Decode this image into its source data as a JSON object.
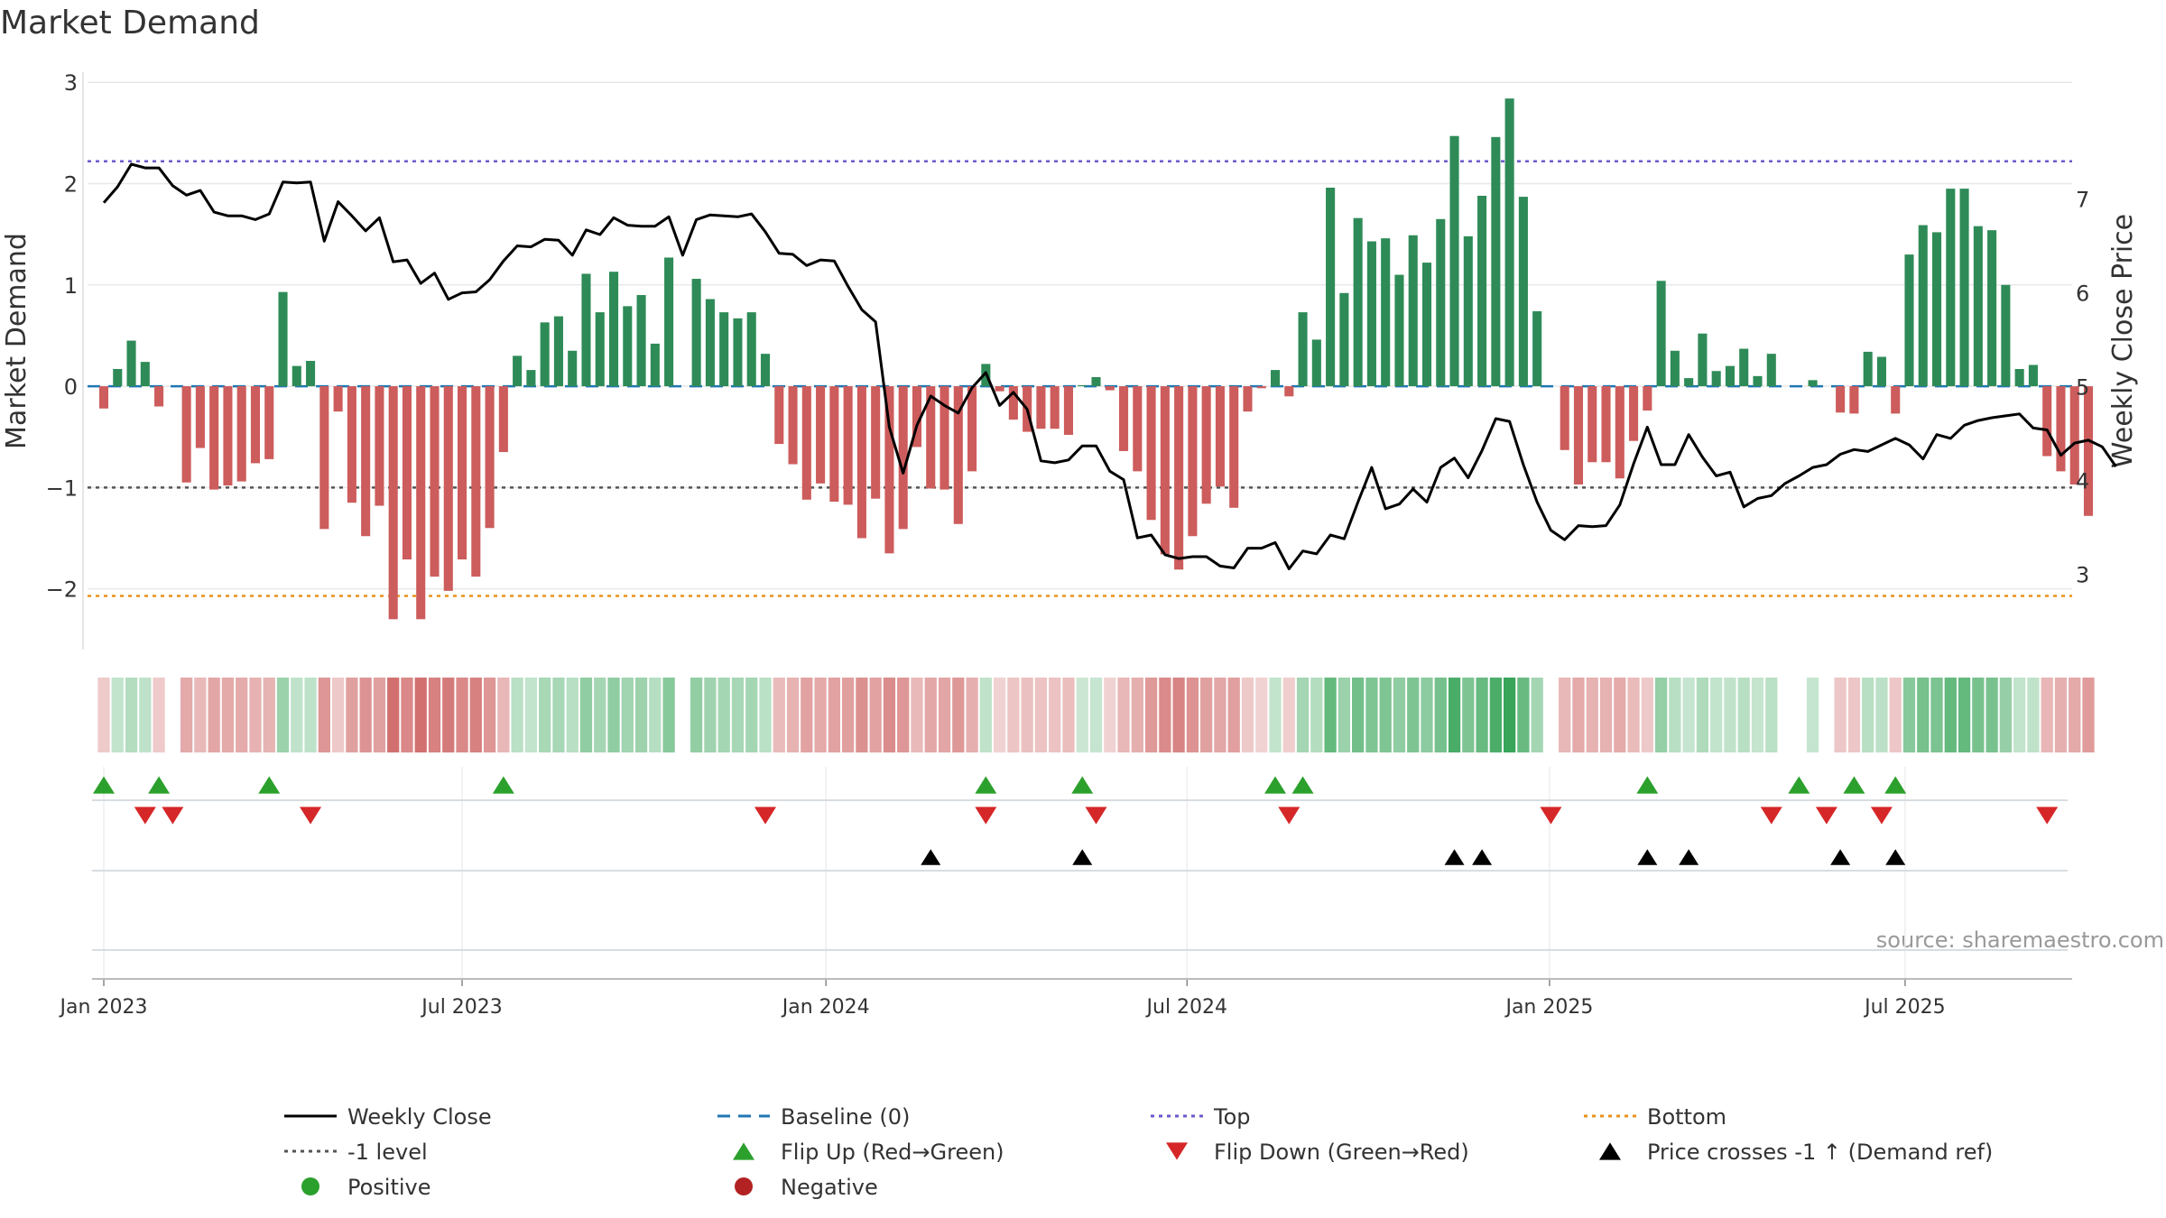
{
  "chart_data": {
    "type": "bar+line",
    "title": "Market Demand",
    "ylabel_left": "Market Demand",
    "ylabel_right": "Weekly Close Price",
    "source": "source: sharemaestro.com",
    "ylim_left": [
      -2.6,
      3.1
    ],
    "yticks_left": [
      {
        "v": 3,
        "label": "3"
      },
      {
        "v": 2,
        "label": "2"
      },
      {
        "v": 1,
        "label": "1"
      },
      {
        "v": 0,
        "label": "0"
      },
      {
        "v": -1,
        "label": "−1"
      },
      {
        "v": -2,
        "label": "−2"
      }
    ],
    "ylim_right": [
      2.2,
      8.35
    ],
    "yticks_right": [
      {
        "v": 7,
        "label": "7"
      },
      {
        "v": 6,
        "label": "6"
      },
      {
        "v": 5,
        "label": "5"
      },
      {
        "v": 4,
        "label": "4"
      },
      {
        "v": 3,
        "label": "3"
      }
    ],
    "reference_lines": {
      "top": 2.22,
      "bottom": -2.07,
      "minus_one": -1,
      "baseline": 0
    },
    "x_start": "2022-12-26",
    "x_ticks": [
      {
        "week": 0,
        "label": "Jan 2023"
      },
      {
        "week": 26,
        "label": "Jul 2023"
      },
      {
        "week": 52.4,
        "label": "Jan 2024"
      },
      {
        "week": 78.6,
        "label": "Jul 2024"
      },
      {
        "week": 104.9,
        "label": "Jan 2025"
      },
      {
        "week": 130.7,
        "label": "Jul 2025"
      }
    ],
    "demand": [
      -0.22,
      0.17,
      0.45,
      0.24,
      -0.2,
      0,
      -0.95,
      -0.61,
      -1.02,
      -0.98,
      -0.94,
      -0.76,
      -0.72,
      0.93,
      0.2,
      0.25,
      -1.41,
      -0.25,
      -1.15,
      -1.48,
      -1.18,
      -2.3,
      -1.71,
      -2.3,
      -1.88,
      -2.02,
      -1.71,
      -1.88,
      -1.4,
      -0.65,
      0.3,
      0.16,
      0.63,
      0.69,
      0.35,
      1.11,
      0.73,
      1.13,
      0.79,
      0.9,
      0.42,
      1.27,
      0,
      1.06,
      0.86,
      0.73,
      0.67,
      0.73,
      0.32,
      -0.57,
      -0.77,
      -1.12,
      -0.96,
      -1.14,
      -1.17,
      -1.5,
      -1.11,
      -1.65,
      -1.41,
      -0.6,
      -1.01,
      -1.02,
      -1.36,
      -0.84,
      0.22,
      -0.05,
      -0.33,
      -0.45,
      -0.42,
      -0.42,
      -0.48,
      0.01,
      0.09,
      -0.04,
      -0.64,
      -0.84,
      -1.32,
      -1.66,
      -1.81,
      -1.48,
      -1.16,
      -0.99,
      -1.2,
      -0.25,
      -0.02,
      0.16,
      -0.1,
      0.73,
      0.46,
      1.96,
      0.92,
      1.66,
      1.43,
      1.46,
      1.1,
      1.49,
      1.22,
      1.65,
      2.47,
      1.48,
      1.88,
      2.46,
      2.84,
      1.87,
      0.74,
      0,
      -0.63,
      -0.97,
      -0.75,
      -0.75,
      -0.91,
      -0.54,
      -0.24,
      1.04,
      0.35,
      0.08,
      0.52,
      0.15,
      0.2,
      0.37,
      0.1,
      0.32,
      0,
      0,
      0.06,
      0,
      -0.26,
      -0.27,
      0.34,
      0.29,
      -0.27,
      1.3,
      1.59,
      1.52,
      1.95,
      1.95,
      1.58,
      1.54,
      1.0,
      0.17,
      0.21,
      -0.69,
      -0.84,
      -0.97,
      -1.28
    ],
    "close": [
      6.96,
      7.13,
      7.37,
      7.33,
      7.33,
      7.14,
      7.04,
      7.09,
      6.86,
      6.82,
      6.82,
      6.78,
      6.84,
      7.18,
      7.17,
      7.18,
      6.55,
      6.97,
      6.82,
      6.66,
      6.8,
      6.33,
      6.35,
      6.1,
      6.21,
      5.93,
      6.0,
      6.01,
      6.14,
      6.34,
      6.5,
      6.49,
      6.57,
      6.56,
      6.4,
      6.67,
      6.62,
      6.8,
      6.72,
      6.71,
      6.71,
      6.81,
      6.4,
      6.78,
      6.83,
      6.82,
      6.81,
      6.84,
      6.65,
      6.42,
      6.41,
      6.29,
      6.35,
      6.34,
      6.07,
      5.82,
      5.69,
      4.57,
      4.08,
      4.59,
      4.9,
      4.8,
      4.72,
      4.99,
      5.15,
      4.8,
      4.94,
      4.76,
      4.21,
      4.19,
      4.22,
      4.37,
      4.37,
      4.1,
      4.01,
      3.39,
      3.42,
      3.21,
      3.17,
      3.19,
      3.19,
      3.09,
      3.07,
      3.28,
      3.28,
      3.34,
      3.06,
      3.25,
      3.22,
      3.42,
      3.38,
      3.77,
      4.14,
      3.7,
      3.75,
      3.91,
      3.77,
      4.14,
      4.24,
      4.03,
      4.32,
      4.66,
      4.63,
      4.17,
      3.77,
      3.47,
      3.37,
      3.52,
      3.51,
      3.52,
      3.74,
      4.18,
      4.57,
      4.17,
      4.17,
      4.49,
      4.25,
      4.05,
      4.09,
      3.72,
      3.81,
      3.84,
      3.97,
      4.05,
      4.14,
      4.17,
      4.28,
      4.33,
      4.31,
      4.38,
      4.45,
      4.38,
      4.23,
      4.49,
      4.45,
      4.59,
      4.64,
      4.67,
      4.69,
      4.71,
      4.56,
      4.54,
      4.27,
      4.4,
      4.43,
      4.36,
      4.15
    ],
    "flip_up_weeks": [
      0,
      4,
      12,
      29,
      64,
      71,
      85,
      87,
      112,
      123,
      127,
      130
    ],
    "flip_down_weeks": [
      3,
      5,
      15,
      48,
      64,
      72,
      86,
      105,
      121,
      125,
      129,
      141
    ],
    "price_cross_weeks": [
      60,
      71,
      98,
      100,
      112,
      115,
      126,
      130
    ]
  },
  "legend": [
    {
      "label": "Weekly Close",
      "marker": "solid-line",
      "color": "#000000"
    },
    {
      "label": "Baseline (0)",
      "marker": "dash-line",
      "color": "#1f77b4"
    },
    {
      "label": "Top",
      "marker": "dot-line",
      "color": "#6a5acd"
    },
    {
      "label": "Bottom",
      "marker": "dot-line",
      "color": "#e8921a"
    },
    {
      "label": "-1 level",
      "marker": "dot-line",
      "color": "#555555"
    },
    {
      "label": "Flip Up (Red→Green)",
      "marker": "triangle-up",
      "color": "#2ca02c"
    },
    {
      "label": "Flip Down (Green→Red)",
      "marker": "triangle-down",
      "color": "#d62728"
    },
    {
      "label": "Price crosses -1 ↑ (Demand ref)",
      "marker": "triangle-up",
      "color": "#000000"
    },
    {
      "label": "Positive",
      "marker": "circle",
      "color": "#2ca02c"
    },
    {
      "label": "Negative",
      "marker": "circle",
      "color": "#b22222"
    }
  ],
  "colors": {
    "positive_bar": "#2e8b57",
    "negative_bar": "#cd5c5c",
    "close_line": "#000000",
    "flip_up": "#2ca02c",
    "flip_down": "#d62728",
    "grid": "#e8e8e8"
  }
}
